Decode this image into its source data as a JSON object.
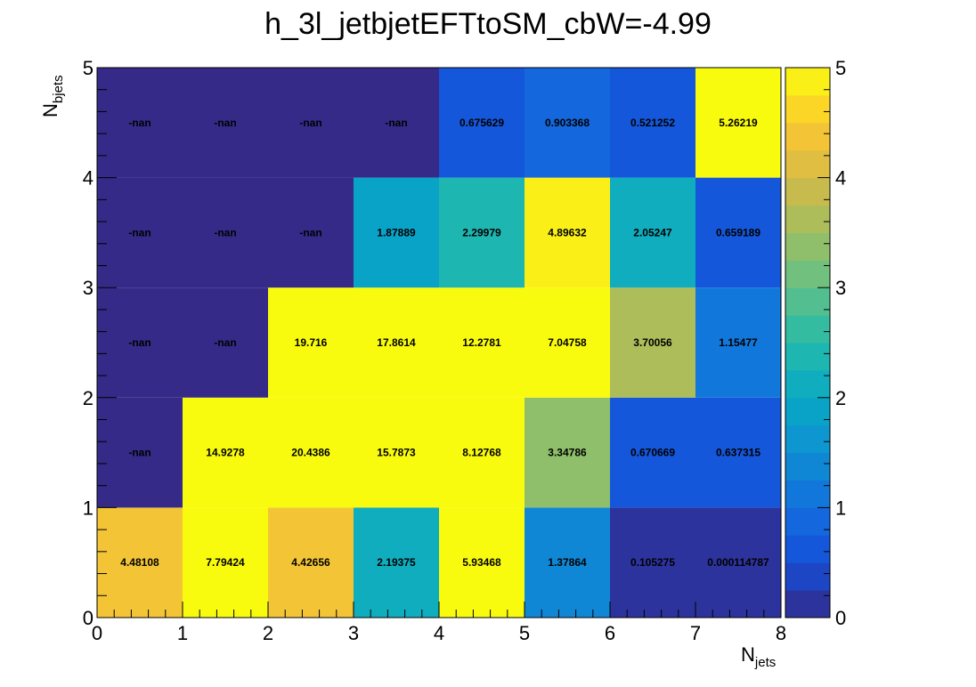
{
  "chart_data": {
    "type": "heatmap",
    "title": "h_3l_jetbjetEFTtoSM_cbW=-4.99",
    "xlabel_main": "N",
    "xlabel_sub": "jets",
    "ylabel_main": "N",
    "ylabel_sub": "bjets",
    "x_bins": [
      0,
      1,
      2,
      3,
      4,
      5,
      6,
      7,
      8
    ],
    "y_bins": [
      0,
      1,
      2,
      3,
      4,
      5
    ],
    "x_ticks": [
      "0",
      "1",
      "2",
      "3",
      "4",
      "5",
      "6",
      "7",
      "8"
    ],
    "y_ticks": [
      "0",
      "1",
      "2",
      "3",
      "4",
      "5"
    ],
    "z_range": [
      0,
      5
    ],
    "z_ticks": [
      "0",
      "1",
      "2",
      "3",
      "4",
      "5"
    ],
    "grid": false,
    "colorbar": "right",
    "palette": "parula",
    "cells": [
      {
        "x": 0,
        "y": 0,
        "value": 4.48108,
        "label": "4.48108"
      },
      {
        "x": 1,
        "y": 0,
        "value": 7.79424,
        "label": "7.79424"
      },
      {
        "x": 2,
        "y": 0,
        "value": 4.42656,
        "label": "4.42656"
      },
      {
        "x": 3,
        "y": 0,
        "value": 2.19375,
        "label": "2.19375"
      },
      {
        "x": 4,
        "y": 0,
        "value": 5.93468,
        "label": "5.93468"
      },
      {
        "x": 5,
        "y": 0,
        "value": 1.37864,
        "label": "1.37864"
      },
      {
        "x": 6,
        "y": 0,
        "value": 0.105275,
        "label": "0.105275"
      },
      {
        "x": 7,
        "y": 0,
        "value": 0.000114787,
        "label": "0.000114787"
      },
      {
        "x": 0,
        "y": 1,
        "value": null,
        "label": "-nan"
      },
      {
        "x": 1,
        "y": 1,
        "value": 14.9278,
        "label": "14.9278"
      },
      {
        "x": 2,
        "y": 1,
        "value": 20.4386,
        "label": "20.4386"
      },
      {
        "x": 3,
        "y": 1,
        "value": 15.7873,
        "label": "15.7873"
      },
      {
        "x": 4,
        "y": 1,
        "value": 8.12768,
        "label": "8.12768"
      },
      {
        "x": 5,
        "y": 1,
        "value": 3.34786,
        "label": "3.34786"
      },
      {
        "x": 6,
        "y": 1,
        "value": 0.670669,
        "label": "0.670669"
      },
      {
        "x": 7,
        "y": 1,
        "value": 0.637315,
        "label": "0.637315"
      },
      {
        "x": 0,
        "y": 2,
        "value": null,
        "label": "-nan"
      },
      {
        "x": 1,
        "y": 2,
        "value": null,
        "label": "-nan"
      },
      {
        "x": 2,
        "y": 2,
        "value": 19.716,
        "label": "19.716"
      },
      {
        "x": 3,
        "y": 2,
        "value": 17.8614,
        "label": "17.8614"
      },
      {
        "x": 4,
        "y": 2,
        "value": 12.2781,
        "label": "12.2781"
      },
      {
        "x": 5,
        "y": 2,
        "value": 7.04758,
        "label": "7.04758"
      },
      {
        "x": 6,
        "y": 2,
        "value": 3.70056,
        "label": "3.70056"
      },
      {
        "x": 7,
        "y": 2,
        "value": 1.15477,
        "label": "1.15477"
      },
      {
        "x": 0,
        "y": 3,
        "value": null,
        "label": "-nan"
      },
      {
        "x": 1,
        "y": 3,
        "value": null,
        "label": "-nan"
      },
      {
        "x": 2,
        "y": 3,
        "value": null,
        "label": "-nan"
      },
      {
        "x": 3,
        "y": 3,
        "value": 1.87889,
        "label": "1.87889"
      },
      {
        "x": 4,
        "y": 3,
        "value": 2.29979,
        "label": "2.29979"
      },
      {
        "x": 5,
        "y": 3,
        "value": 4.89632,
        "label": "4.89632"
      },
      {
        "x": 6,
        "y": 3,
        "value": 2.05247,
        "label": "2.05247"
      },
      {
        "x": 7,
        "y": 3,
        "value": 0.659189,
        "label": "0.659189"
      },
      {
        "x": 0,
        "y": 4,
        "value": null,
        "label": "-nan"
      },
      {
        "x": 1,
        "y": 4,
        "value": null,
        "label": "-nan"
      },
      {
        "x": 2,
        "y": 4,
        "value": null,
        "label": "-nan"
      },
      {
        "x": 3,
        "y": 4,
        "value": null,
        "label": "-nan"
      },
      {
        "x": 4,
        "y": 4,
        "value": 0.675629,
        "label": "0.675629"
      },
      {
        "x": 5,
        "y": 4,
        "value": 0.903368,
        "label": "0.903368"
      },
      {
        "x": 6,
        "y": 4,
        "value": 0.521252,
        "label": "0.521252"
      },
      {
        "x": 7,
        "y": 4,
        "value": 5.26219,
        "label": "5.26219"
      }
    ]
  }
}
